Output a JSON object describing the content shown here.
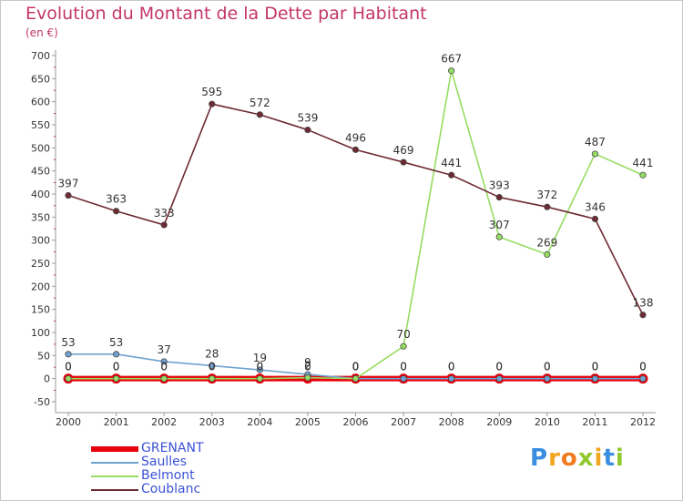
{
  "chart_data": {
    "type": "line",
    "title": "Evolution du Montant de la Dette par Habitant",
    "unit_label": "(en €)",
    "x": [
      "2000",
      "2001",
      "2002",
      "2003",
      "2004",
      "2005",
      "2006",
      "2007",
      "2008",
      "2009",
      "2010",
      "2011",
      "2012"
    ],
    "ylim": [
      -50,
      700
    ],
    "ytick_step": 50,
    "grid": false,
    "legend_position": "bottom-left",
    "series": [
      {
        "name": "GRENANT",
        "color": "#e8000b",
        "values": [
          0,
          0,
          0,
          0,
          0,
          0,
          0,
          0,
          0,
          0,
          0,
          0,
          0
        ]
      },
      {
        "name": "Saulles",
        "color": "#6fa2cf",
        "values": [
          53,
          53,
          37,
          28,
          19,
          9,
          0,
          0,
          0,
          0,
          0,
          0,
          0
        ]
      },
      {
        "name": "Belmont",
        "color": "#96dc62",
        "values": [
          0,
          0,
          0,
          0,
          0,
          2,
          0,
          70,
          667,
          307,
          269,
          487,
          441
        ]
      },
      {
        "name": "Coublanc",
        "color": "#6e2a33",
        "values": [
          397,
          363,
          333,
          595,
          572,
          539,
          496,
          469,
          441,
          393,
          372,
          346,
          138
        ]
      }
    ]
  },
  "brand": {
    "letters": [
      "P",
      "r",
      "o",
      "x",
      "i",
      "t",
      "i"
    ],
    "colors": [
      "#3a8de0",
      "#f2a51f",
      "#f27a1f",
      "#8fc92e",
      "#f2a51f",
      "#3a8de0",
      "#8fc92e"
    ]
  }
}
